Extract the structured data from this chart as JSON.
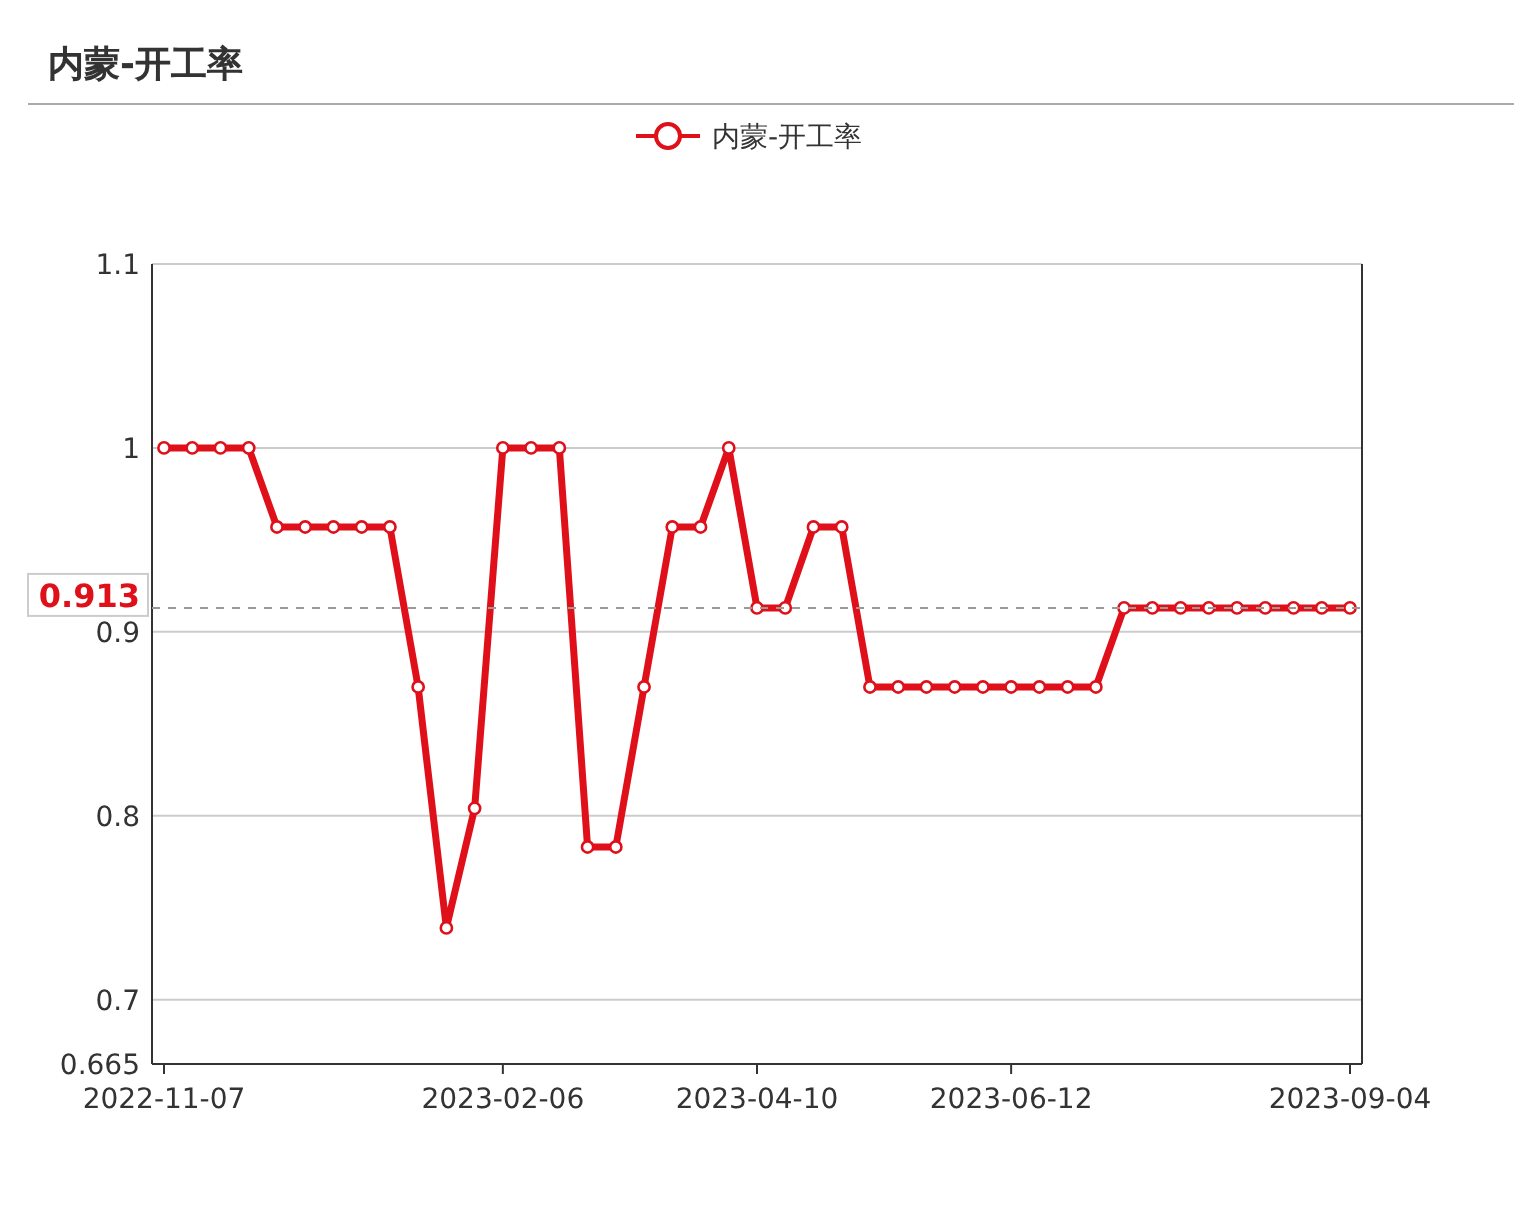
{
  "chart_data": {
    "type": "line",
    "title": "内蒙-开工率",
    "categories": [
      "2022-11-07",
      null,
      null,
      null,
      null,
      null,
      null,
      null,
      null,
      null,
      null,
      null,
      "2023-02-06",
      null,
      null,
      null,
      null,
      null,
      null,
      null,
      null,
      "2023-04-10",
      null,
      null,
      null,
      null,
      null,
      null,
      null,
      null,
      "2023-06-12",
      null,
      null,
      null,
      null,
      null,
      null,
      null,
      null,
      null,
      null,
      null,
      "2023-09-04"
    ],
    "series": [
      {
        "name": "内蒙-开工率",
        "color": "#e0101a",
        "values": [
          1,
          1,
          1,
          1,
          0.957,
          0.957,
          0.957,
          0.957,
          0.957,
          0.87,
          0.739,
          0.804,
          1,
          1,
          1,
          0.783,
          0.783,
          0.87,
          0.957,
          0.957,
          1,
          0.913,
          0.913,
          0.957,
          0.957,
          0.87,
          0.87,
          0.87,
          0.87,
          0.87,
          0.87,
          0.87,
          0.87,
          0.87,
          0.913,
          0.913,
          0.913,
          0.913,
          0.913,
          0.913,
          0.913,
          0.913,
          0.913
        ]
      }
    ],
    "ylim": [
      0.665,
      1.1
    ],
    "yticks": [
      0.665,
      0.7,
      0.8,
      0.9,
      1,
      1.1
    ],
    "grid": "y",
    "legend": "top",
    "marker": "circle",
    "line_style": "solid",
    "ref_lines": [
      {
        "axis": "y",
        "value": 0.913,
        "label": "0.913"
      }
    ]
  }
}
